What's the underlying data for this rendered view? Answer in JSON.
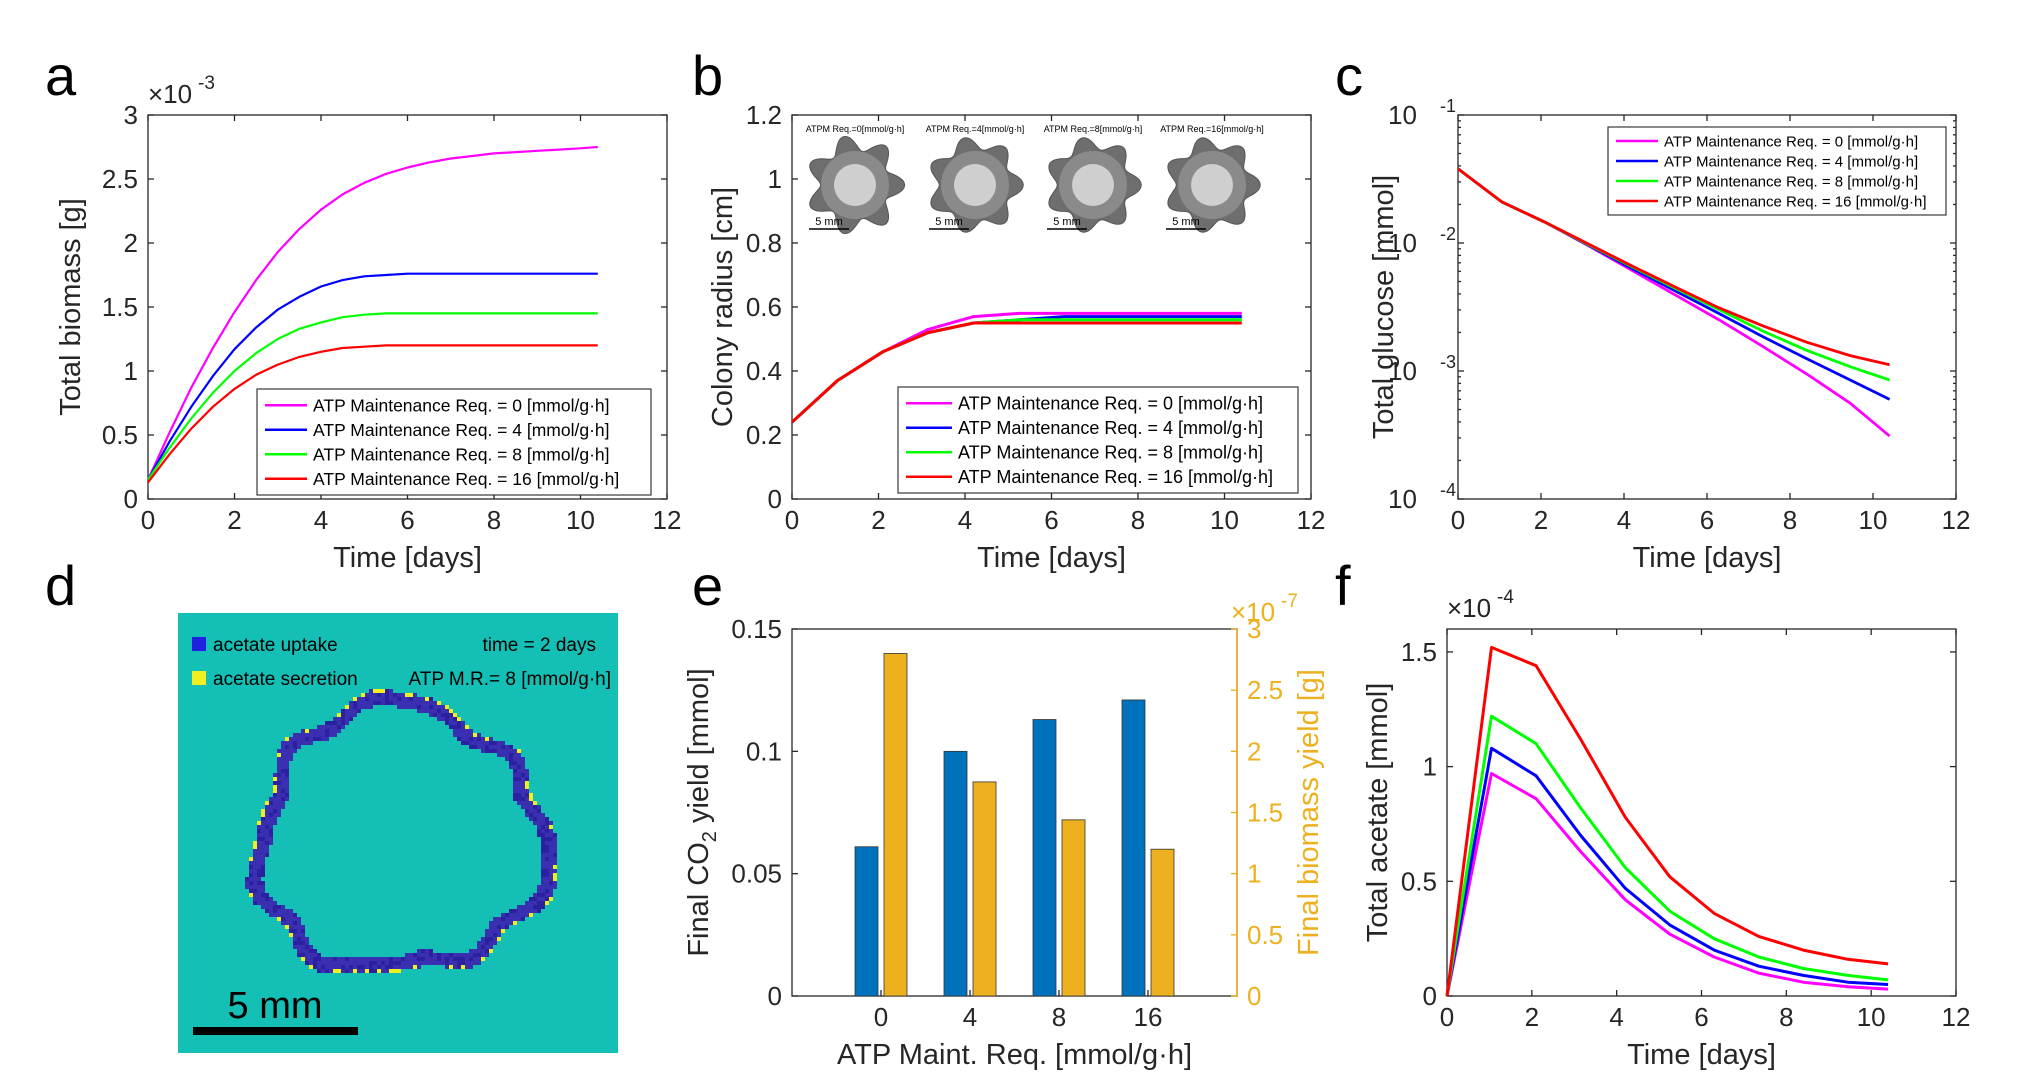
{
  "panels": {
    "a": "a",
    "b": "b",
    "c": "c",
    "d": "d",
    "e": "e",
    "f": "f"
  },
  "colors": {
    "req0": "#ff00ff",
    "req4": "#0000ff",
    "req8": "#00ff00",
    "req16": "#ff0000",
    "bar_co2": "#0072bd",
    "bar_biomass": "#edb120",
    "teal": "#14bfb5",
    "uptake": "#2f3bbf",
    "secretion": "#f0f020"
  },
  "chart_data": [
    {
      "id": "a",
      "type": "line",
      "xlabel": "Time [days]",
      "ylabel": "Total biomass [g]",
      "exponent_label": "×10",
      "exponent_power": "-3",
      "xlim": [
        0,
        12
      ],
      "ylim": [
        0,
        3
      ],
      "xticks": [
        0,
        2,
        4,
        6,
        8,
        10,
        12
      ],
      "yticks": [
        0,
        0.5,
        1,
        1.5,
        2,
        2.5,
        3
      ],
      "ytick_labels": [
        "0",
        "0.5",
        "1",
        "1.5",
        "2",
        "2.5",
        "3"
      ],
      "legend_placement": "bottom-right",
      "series": [
        {
          "name": "ATP Maintenance Req. = 0 [mmol/g·h]",
          "color": "#ff00ff",
          "x": [
            0,
            0.5,
            1,
            1.5,
            2,
            2.5,
            3,
            3.5,
            4,
            4.5,
            5,
            5.5,
            6,
            6.5,
            7,
            7.5,
            8,
            8.5,
            9,
            9.5,
            10,
            10.4
          ],
          "y": [
            0.15,
            0.52,
            0.87,
            1.18,
            1.46,
            1.71,
            1.93,
            2.11,
            2.26,
            2.38,
            2.47,
            2.54,
            2.59,
            2.63,
            2.66,
            2.68,
            2.7,
            2.71,
            2.72,
            2.73,
            2.74,
            2.75
          ]
        },
        {
          "name": "ATP Maintenance Req. = 4 [mmol/g·h]",
          "color": "#0000ff",
          "x": [
            0,
            0.5,
            1,
            1.5,
            2,
            2.5,
            3,
            3.5,
            4,
            4.5,
            5,
            5.5,
            6,
            7,
            8,
            9,
            10,
            10.4
          ],
          "y": [
            0.15,
            0.45,
            0.72,
            0.96,
            1.17,
            1.34,
            1.48,
            1.58,
            1.66,
            1.71,
            1.74,
            1.75,
            1.76,
            1.76,
            1.76,
            1.76,
            1.76,
            1.76
          ]
        },
        {
          "name": "ATP Maintenance Req. = 8 [mmol/g·h]",
          "color": "#00ff00",
          "x": [
            0,
            0.5,
            1,
            1.5,
            2,
            2.5,
            3,
            3.5,
            4,
            4.5,
            5,
            5.5,
            6,
            7,
            8,
            9,
            10,
            10.4
          ],
          "y": [
            0.15,
            0.4,
            0.63,
            0.83,
            1.0,
            1.14,
            1.25,
            1.33,
            1.38,
            1.42,
            1.44,
            1.45,
            1.45,
            1.45,
            1.45,
            1.45,
            1.45,
            1.45
          ]
        },
        {
          "name": "ATP Maintenance Req. = 16 [mmol/g·h]",
          "color": "#ff0000",
          "x": [
            0,
            0.5,
            1,
            1.5,
            2,
            2.5,
            3,
            3.5,
            4,
            4.5,
            5,
            5.5,
            6,
            7,
            8,
            9,
            10,
            10.4
          ],
          "y": [
            0.13,
            0.35,
            0.55,
            0.72,
            0.86,
            0.97,
            1.05,
            1.11,
            1.15,
            1.18,
            1.19,
            1.2,
            1.2,
            1.2,
            1.2,
            1.2,
            1.2,
            1.2
          ]
        }
      ]
    },
    {
      "id": "b",
      "type": "line",
      "xlabel": "Time [days]",
      "ylabel": "Colony radius [cm]",
      "xlim": [
        0,
        12
      ],
      "ylim": [
        0,
        1.2
      ],
      "xticks": [
        0,
        2,
        4,
        6,
        8,
        10,
        12
      ],
      "yticks": [
        0,
        0.2,
        0.4,
        0.6,
        0.8,
        1,
        1.2
      ],
      "ytick_labels": [
        "0",
        "0.2",
        "0.4",
        "0.6",
        "0.8",
        "1",
        "1.2"
      ],
      "legend_placement": "bottom-right",
      "insets": [
        {
          "caption": "ATPM Req.=0[mmol/g·h]",
          "scale": "5 mm"
        },
        {
          "caption": "ATPM Req.=4[mmol/g·h]",
          "scale": "5 mm"
        },
        {
          "caption": "ATPM Req.=8[mmol/g·h]",
          "scale": "5 mm"
        },
        {
          "caption": "ATPM Req.=16[mmol/g·h]",
          "scale": "5 mm"
        }
      ],
      "series": [
        {
          "name": "ATP Maintenance Req. = 0 [mmol/g·h]",
          "color": "#ff00ff",
          "x": [
            0,
            1.05,
            2.1,
            3.15,
            4.2,
            5.25,
            6.3,
            7.35,
            8.4,
            9.45,
            10.4
          ],
          "y": [
            0.24,
            0.37,
            0.46,
            0.53,
            0.57,
            0.58,
            0.58,
            0.58,
            0.58,
            0.58,
            0.58
          ]
        },
        {
          "name": "ATP Maintenance Req. = 4 [mmol/g·h]",
          "color": "#0000ff",
          "x": [
            0,
            1.05,
            2.1,
            3.15,
            4.2,
            5.25,
            6.3,
            7.35,
            8.4,
            9.45,
            10.4
          ],
          "y": [
            0.24,
            0.37,
            0.46,
            0.52,
            0.55,
            0.56,
            0.57,
            0.57,
            0.57,
            0.57,
            0.57
          ]
        },
        {
          "name": "ATP Maintenance Req. = 8 [mmol/g·h]",
          "color": "#00ff00",
          "x": [
            0,
            1.05,
            2.1,
            3.15,
            4.2,
            5.25,
            6.3,
            7.35,
            8.4,
            9.45,
            10.4
          ],
          "y": [
            0.24,
            0.37,
            0.46,
            0.52,
            0.55,
            0.56,
            0.56,
            0.56,
            0.56,
            0.56,
            0.56
          ]
        },
        {
          "name": "ATP Maintenance Req. = 16 [mmol/g·h]",
          "color": "#ff0000",
          "x": [
            0,
            1.05,
            2.1,
            3.15,
            4.2,
            5.25,
            6.3,
            7.35,
            8.4,
            9.45,
            10.4
          ],
          "y": [
            0.24,
            0.37,
            0.46,
            0.52,
            0.55,
            0.55,
            0.55,
            0.55,
            0.55,
            0.55,
            0.55
          ]
        }
      ]
    },
    {
      "id": "c",
      "type": "line",
      "yscale": "log",
      "xlabel": "Time [days]",
      "ylabel": "Total glucose [mmol]",
      "xlim": [
        0,
        12
      ],
      "ylim": [
        0.0001,
        0.1
      ],
      "xticks": [
        0,
        2,
        4,
        6,
        8,
        10,
        12
      ],
      "yticks": [
        0.0001,
        0.001,
        0.01,
        0.1
      ],
      "ytick_powers": [
        "-4",
        "-3",
        "-2",
        "-1"
      ],
      "ytick_base": "10",
      "legend_placement": "top-right",
      "series": [
        {
          "name": "ATP Maintenance Req. = 0 [mmol/g·h]",
          "color": "#ff00ff",
          "x": [
            0,
            1.05,
            2.1,
            3.15,
            4.2,
            5.25,
            6.3,
            7.35,
            8.4,
            9.45,
            10.4
          ],
          "y": [
            0.038,
            0.021,
            0.0145,
            0.0095,
            0.0061,
            0.0039,
            0.0025,
            0.00155,
            0.00095,
            0.00056,
            0.00031
          ]
        },
        {
          "name": "ATP Maintenance Req. = 4 [mmol/g·h]",
          "color": "#0000ff",
          "x": [
            0,
            1.05,
            2.1,
            3.15,
            4.2,
            5.25,
            6.3,
            7.35,
            8.4,
            9.45,
            10.4
          ],
          "y": [
            0.038,
            0.021,
            0.0145,
            0.0096,
            0.0063,
            0.0042,
            0.0028,
            0.00185,
            0.00125,
            0.00085,
            0.0006
          ]
        },
        {
          "name": "ATP Maintenance Req. = 8 [mmol/g·h]",
          "color": "#00ff00",
          "x": [
            0,
            1.05,
            2.1,
            3.15,
            4.2,
            5.25,
            6.3,
            7.35,
            8.4,
            9.45,
            10.4
          ],
          "y": [
            0.038,
            0.021,
            0.0145,
            0.0097,
            0.0065,
            0.0044,
            0.003,
            0.00205,
            0.00145,
            0.00108,
            0.00085
          ]
        },
        {
          "name": "ATP Maintenance Req. = 16 [mmol/g·h]",
          "color": "#ff0000",
          "x": [
            0,
            1.05,
            2.1,
            3.15,
            4.2,
            5.25,
            6.3,
            7.35,
            8.4,
            9.45,
            10.4
          ],
          "y": [
            0.038,
            0.021,
            0.0145,
            0.0098,
            0.0066,
            0.0045,
            0.0031,
            0.00225,
            0.00168,
            0.00132,
            0.00112
          ]
        }
      ]
    },
    {
      "id": "e",
      "type": "bar",
      "xlabel": "ATP Maint. Req. [mmol/g·h]",
      "ylabel_left_main": "Final CO",
      "ylabel_left_sub": "2",
      "ylabel_left_rest": " yield [mmol]",
      "ylabel_right": "Final biomass yield [g]",
      "exponent_label": "×10",
      "exponent_power": "-7",
      "categories": [
        "0",
        "4",
        "8",
        "16"
      ],
      "ylim_left": [
        0,
        0.15
      ],
      "ylim_right": [
        0,
        3
      ],
      "yticks_left": [
        0,
        0.05,
        0.1,
        0.15
      ],
      "ytick_labels_left": [
        "0",
        "0.05",
        "0.1",
        "0.15"
      ],
      "yticks_right": [
        0,
        0.5,
        1,
        1.5,
        2,
        2.5,
        3
      ],
      "ytick_labels_right": [
        "0",
        "0.5",
        "1",
        "1.5",
        "2",
        "2.5",
        "3"
      ],
      "series": [
        {
          "axis": "left",
          "color": "#0072bd",
          "values": [
            0.061,
            0.1,
            0.113,
            0.121
          ]
        },
        {
          "axis": "right",
          "color": "#edb120",
          "values": [
            2.8,
            1.75,
            1.44,
            1.2
          ]
        }
      ]
    },
    {
      "id": "f",
      "type": "line",
      "xlabel": "Time [days]",
      "ylabel": "Total acetate [mmol]",
      "exponent_label": "×10",
      "exponent_power": "-4",
      "xlim": [
        0,
        12
      ],
      "ylim": [
        0,
        1.6
      ],
      "xticks": [
        0,
        2,
        4,
        6,
        8,
        10,
        12
      ],
      "yticks": [
        0,
        0.5,
        1,
        1.5
      ],
      "ytick_labels": [
        "0",
        "0.5",
        "1",
        "1.5"
      ],
      "series": [
        {
          "name": "ATP Maintenance Req. = 0 [mmol/g·h]",
          "color": "#ff00ff",
          "x": [
            0,
            1.05,
            2.1,
            3.15,
            4.2,
            5.25,
            6.3,
            7.35,
            8.4,
            9.45,
            10.4
          ],
          "y": [
            0,
            0.97,
            0.86,
            0.63,
            0.42,
            0.27,
            0.17,
            0.1,
            0.06,
            0.04,
            0.03
          ]
        },
        {
          "name": "ATP Maintenance Req. = 4 [mmol/g·h]",
          "color": "#0000ff",
          "x": [
            0,
            1.05,
            2.1,
            3.15,
            4.2,
            5.25,
            6.3,
            7.35,
            8.4,
            9.45,
            10.4
          ],
          "y": [
            0,
            1.08,
            0.96,
            0.7,
            0.47,
            0.31,
            0.2,
            0.13,
            0.09,
            0.06,
            0.05
          ]
        },
        {
          "name": "ATP Maintenance Req. = 8 [mmol/g·h]",
          "color": "#00ff00",
          "x": [
            0,
            1.05,
            2.1,
            3.15,
            4.2,
            5.25,
            6.3,
            7.35,
            8.4,
            9.45,
            10.4
          ],
          "y": [
            0,
            1.22,
            1.1,
            0.82,
            0.56,
            0.37,
            0.25,
            0.17,
            0.12,
            0.09,
            0.07
          ]
        },
        {
          "name": "ATP Maintenance Req. = 16 [mmol/g·h]",
          "color": "#ff0000",
          "x": [
            0,
            1.05,
            2.1,
            3.15,
            4.2,
            5.25,
            6.3,
            7.35,
            8.4,
            9.45,
            10.4
          ],
          "y": [
            0,
            1.52,
            1.44,
            1.12,
            0.78,
            0.52,
            0.36,
            0.26,
            0.2,
            0.16,
            0.14
          ]
        }
      ]
    }
  ],
  "panel_d": {
    "legend_uptake": "acetate uptake",
    "legend_secretion": "acetate secretion",
    "time_label": "time = 2 days",
    "atp_label": "ATP M.R.= 8 [mmol/g·h]",
    "scale_label": "5 mm"
  }
}
